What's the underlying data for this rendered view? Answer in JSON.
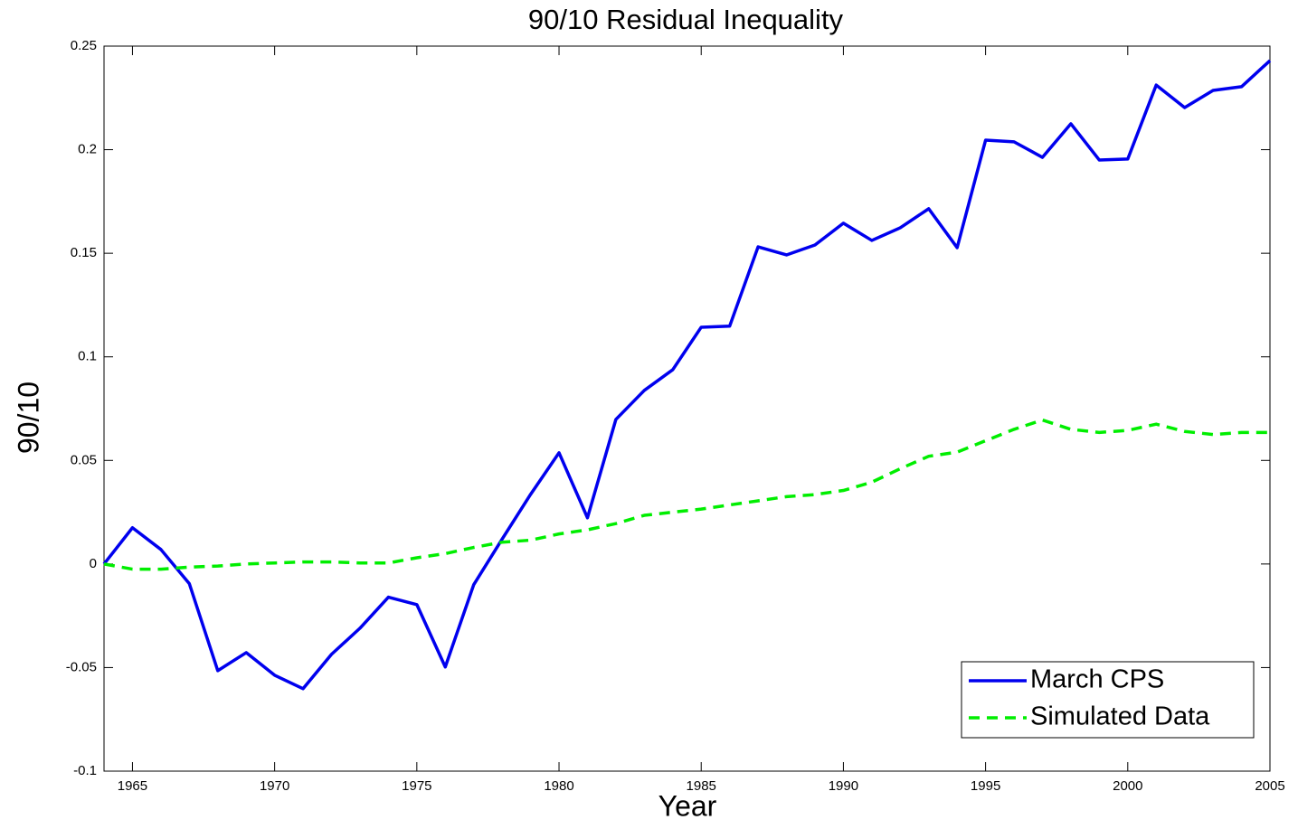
{
  "chart_data": {
    "type": "line",
    "title": "90/10 Residual Inequality",
    "x_label": "Year",
    "y_label": "90/10",
    "x": [
      1964,
      1965,
      1966,
      1967,
      1968,
      1969,
      1970,
      1971,
      1972,
      1973,
      1974,
      1975,
      1976,
      1977,
      1978,
      1979,
      1980,
      1981,
      1982,
      1983,
      1984,
      1985,
      1986,
      1987,
      1988,
      1989,
      1990,
      1991,
      1992,
      1993,
      1994,
      1995,
      1996,
      1997,
      1998,
      1999,
      2000,
      2001,
      2002,
      2003,
      2004,
      2005
    ],
    "series": [
      {
        "name": "March CPS",
        "color": "#0000ee",
        "style": "solid",
        "values": [
          0,
          0.0175,
          0.007,
          -0.0095,
          -0.0515,
          -0.0428,
          -0.0537,
          -0.0602,
          -0.0436,
          -0.031,
          -0.016,
          -0.0196,
          -0.0497,
          -0.01,
          0.012,
          0.0336,
          0.0537,
          0.0223,
          0.0698,
          0.0838,
          0.0938,
          0.1143,
          0.1148,
          0.1531,
          0.1492,
          0.154,
          0.1645,
          0.1562,
          0.1623,
          0.1715,
          0.1527,
          0.2046,
          0.2038,
          0.1963,
          0.2125,
          0.195,
          0.1955,
          0.2312,
          0.2203,
          0.2286,
          0.2304,
          0.243
        ]
      },
      {
        "name": "Simulated Data",
        "color": "#00ee00",
        "style": "dashed",
        "values": [
          0,
          -0.0025,
          -0.0025,
          -0.0015,
          -0.001,
          0,
          0.0005,
          0.001,
          0.001,
          0.0005,
          0.0005,
          0.003,
          0.005,
          0.008,
          0.0105,
          0.0115,
          0.0145,
          0.0165,
          0.0195,
          0.0235,
          0.025,
          0.0265,
          0.0285,
          0.0305,
          0.0325,
          0.0335,
          0.0355,
          0.0395,
          0.046,
          0.052,
          0.054,
          0.0595,
          0.065,
          0.0695,
          0.065,
          0.0635,
          0.0645,
          0.0675,
          0.064,
          0.0625,
          0.0635,
          0.0635
        ]
      }
    ],
    "xlim": [
      1964,
      2005
    ],
    "xticks": [
      1965,
      1970,
      1975,
      1980,
      1985,
      1990,
      1995,
      2000,
      2005
    ],
    "ylim": [
      -0.1,
      0.25
    ],
    "yticks": [
      -0.1,
      -0.05,
      0,
      0.05,
      0.1,
      0.15,
      0.2,
      0.25
    ],
    "legend": "lower right",
    "grid": false
  }
}
